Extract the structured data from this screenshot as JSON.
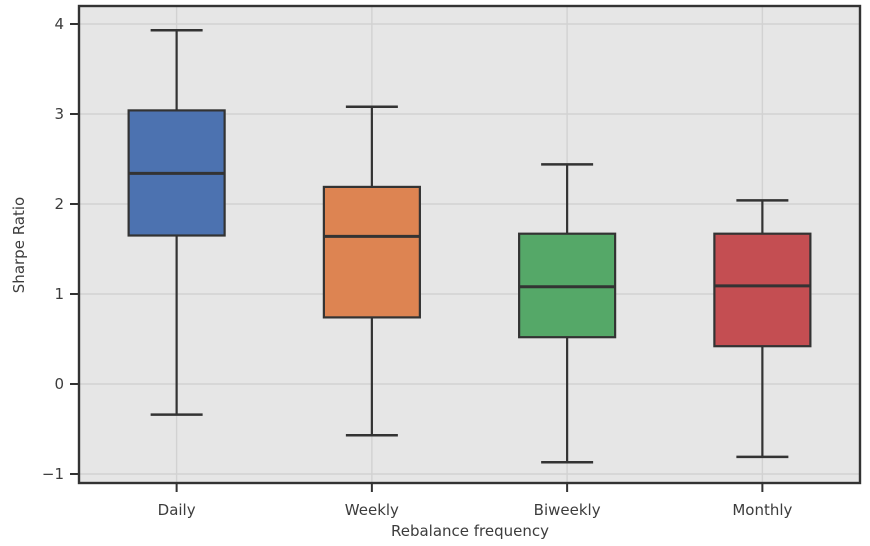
{
  "chart_data": {
    "type": "boxplot",
    "title": "",
    "xlabel": "Rebalance frequency",
    "ylabel": "Sharpe Ratio",
    "categories": [
      "Daily",
      "Weekly",
      "Biweekly",
      "Monthly"
    ],
    "series": [
      {
        "name": "Daily",
        "whisker_low": -0.34,
        "q1": 1.65,
        "median": 2.34,
        "q3": 3.04,
        "whisker_high": 3.93,
        "color": "#4C72B0"
      },
      {
        "name": "Weekly",
        "whisker_low": -0.57,
        "q1": 0.74,
        "median": 1.64,
        "q3": 2.19,
        "whisker_high": 3.08,
        "color": "#DD8452"
      },
      {
        "name": "Biweekly",
        "whisker_low": -0.87,
        "q1": 0.52,
        "median": 1.08,
        "q3": 1.67,
        "whisker_high": 2.44,
        "color": "#55A868"
      },
      {
        "name": "Monthly",
        "whisker_low": -0.81,
        "q1": 0.42,
        "median": 1.09,
        "q3": 1.67,
        "whisker_high": 2.04,
        "color": "#C44E52"
      }
    ],
    "y_ticks": [
      4,
      3,
      2,
      1,
      0,
      -1
    ],
    "y_tick_labels": [
      "4",
      "3",
      "2",
      "1",
      "0",
      "−1"
    ],
    "ylim": [
      -1.1,
      4.2
    ],
    "grid": true,
    "legend": false,
    "style": {
      "plot_bg": "#E6E6E6",
      "grid_color": "#D2D2D2",
      "edge_color": "#333333",
      "text_color": "#3C3C3C"
    }
  }
}
